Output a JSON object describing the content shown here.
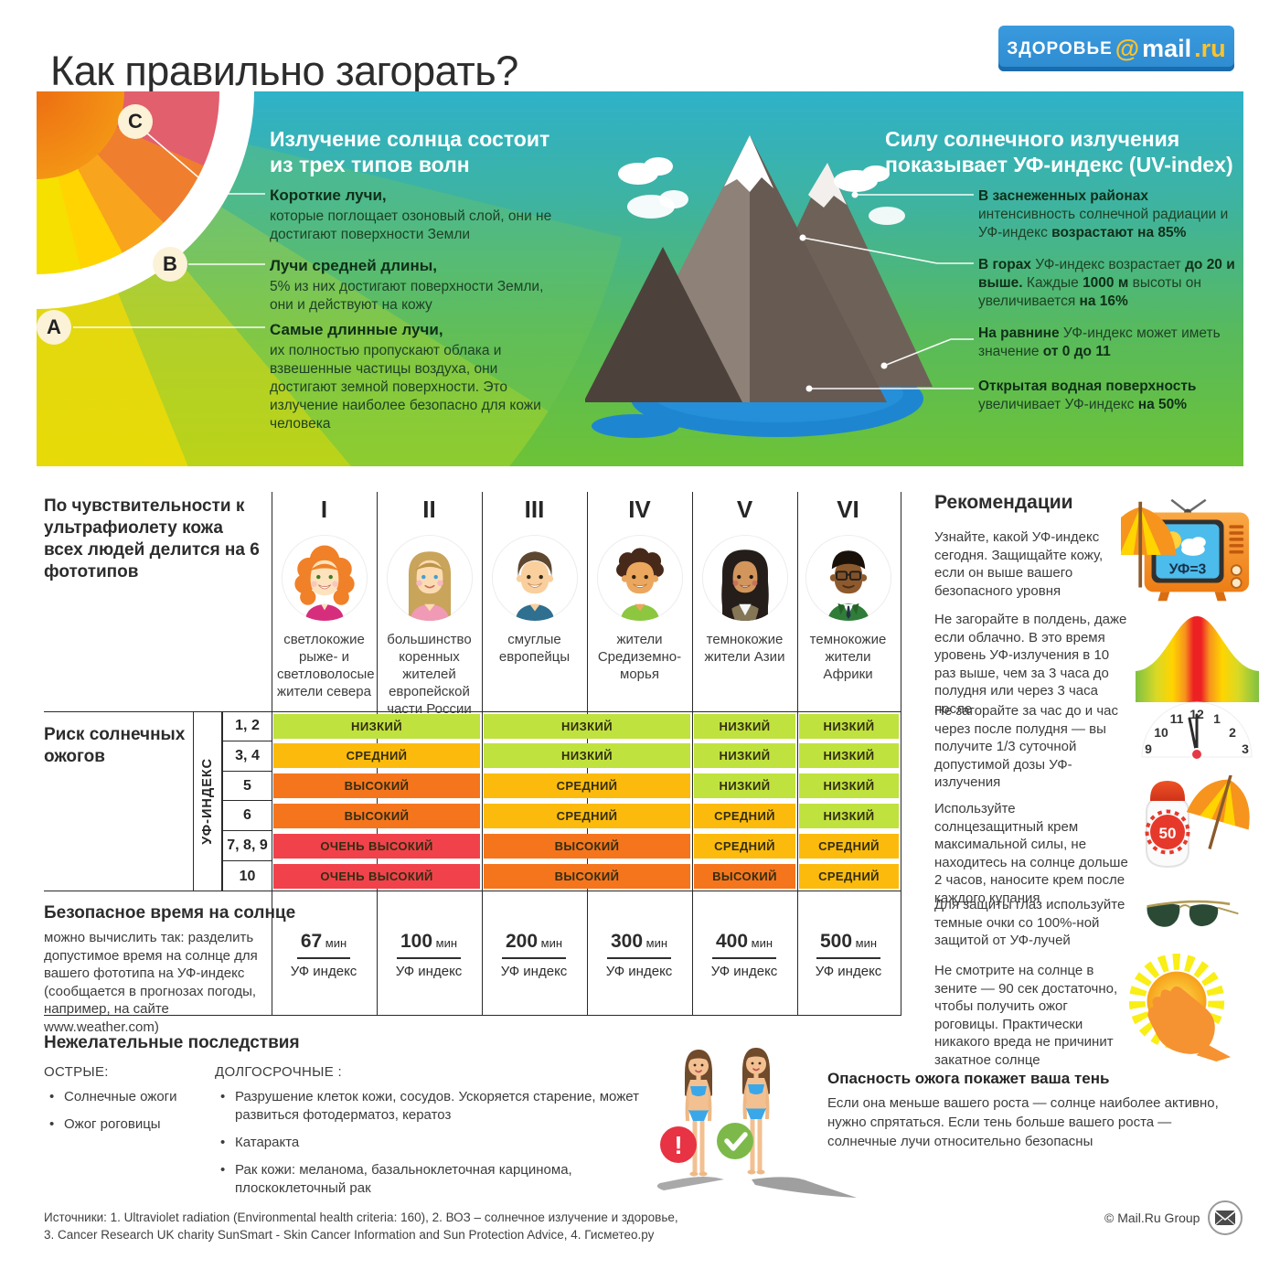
{
  "header": {
    "title": "Как правильно загорать?",
    "logo": {
      "site": "ЗДОРОВЬЕ",
      "at": "@",
      "domain": "mail",
      "tld": ".ru"
    }
  },
  "banner": {
    "left": {
      "heading": "Излучение солнца состоит из трех типов волн",
      "rays": [
        {
          "label": "C",
          "title": "Короткие лучи,",
          "text": "которые поглощает озоновый слой, они не достигают поверхности Земли"
        },
        {
          "label": "B",
          "title": "Лучи средней длины,",
          "text": "5% из них достигают поверхности Земли, они и действуют на кожу"
        },
        {
          "label": "A",
          "title": "Самые длинные лучи,",
          "text": "их полностью пропускают облака и взвешенные частицы воздуха, они достигают земной поверхности. Это излучение наиболее безопасно для кожи человека"
        }
      ]
    },
    "right": {
      "heading": "Силу солнечного излучения показывает УФ-индекс (UV-index)",
      "facts": [
        {
          "segments": [
            {
              "t": "В заснеженных районах",
              "b": true
            },
            {
              "t": " интенсивность солнечной радиации и УФ-индекс ",
              "b": false
            },
            {
              "t": "возрастают на 85%",
              "b": true
            }
          ]
        },
        {
          "segments": [
            {
              "t": "В горах",
              "b": true
            },
            {
              "t": "  УФ-индекс возрастает ",
              "b": false
            },
            {
              "t": "до 20 и выше.",
              "b": true
            },
            {
              "t": " Каждые ",
              "b": false
            },
            {
              "t": "1000 м",
              "b": true
            },
            {
              "t": " высоты он увеличивается ",
              "b": false
            },
            {
              "t": "на 16%",
              "b": true
            }
          ]
        },
        {
          "segments": [
            {
              "t": "На равнине",
              "b": true
            },
            {
              "t": " УФ-индекс может иметь значение ",
              "b": false
            },
            {
              "t": "от 0 до 11",
              "b": true
            }
          ]
        },
        {
          "segments": [
            {
              "t": "Открытая водная поверхность",
              "b": true
            },
            {
              "t": " увеличивает УФ-индекс ",
              "b": false
            },
            {
              "t": "на 50%",
              "b": true
            }
          ]
        }
      ]
    }
  },
  "phototypes": {
    "intro": "По чувствительности к ультрафиолету кожа всех людей делится на 6 фототипов",
    "columns": [
      {
        "numeral": "I",
        "caption": "светлокожие рыже- и светловолосые жители севера",
        "avatar": "redhead-woman"
      },
      {
        "numeral": "II",
        "caption": "большинство коренных жителей европейской части России",
        "avatar": "blonde-woman"
      },
      {
        "numeral": "III",
        "caption": "смуглые европейцы",
        "avatar": "brown-haired-man"
      },
      {
        "numeral": "IV",
        "caption": "жители Средиземно-морья",
        "avatar": "curly-haired-man"
      },
      {
        "numeral": "V",
        "caption": "темнокожие жители Азии",
        "avatar": "asian-woman"
      },
      {
        "numeral": "VI",
        "caption": "темнокожие жители Африки",
        "avatar": "african-man"
      }
    ]
  },
  "risk_table": {
    "title": "Риск солнечных ожогов",
    "axis_label": "УФ-ИНДЕКС",
    "rows": [
      {
        "uv": "1, 2",
        "cells": [
          {
            "label": "НИЗКИЙ",
            "color": "#bfe23e"
          },
          {
            "label": "НИЗКИЙ",
            "color": "#bfe23e"
          },
          {
            "label": "НИЗКИЙ",
            "color": "#bfe23e"
          },
          {
            "label": "НИЗКИЙ",
            "color": "#bfe23e"
          }
        ]
      },
      {
        "uv": "3, 4",
        "cells": [
          {
            "label": "СРЕДНИЙ",
            "color": "#fcbb0c"
          },
          {
            "label": "НИЗКИЙ",
            "color": "#bfe23e"
          },
          {
            "label": "НИЗКИЙ",
            "color": "#bfe23e"
          },
          {
            "label": "НИЗКИЙ",
            "color": "#bfe23e"
          }
        ]
      },
      {
        "uv": "5",
        "cells": [
          {
            "label": "ВЫСОКИЙ",
            "color": "#f5751d"
          },
          {
            "label": "СРЕДНИЙ",
            "color": "#fcbb0c"
          },
          {
            "label": "НИЗКИЙ",
            "color": "#bfe23e"
          },
          {
            "label": "НИЗКИЙ",
            "color": "#bfe23e"
          }
        ]
      },
      {
        "uv": "6",
        "cells": [
          {
            "label": "ВЫСОКИЙ",
            "color": "#f5751d"
          },
          {
            "label": "СРЕДНИЙ",
            "color": "#fcbb0c"
          },
          {
            "label": "СРЕДНИЙ",
            "color": "#fcbb0c"
          },
          {
            "label": "НИЗКИЙ",
            "color": "#bfe23e"
          }
        ]
      },
      {
        "uv": "7, 8, 9",
        "cells": [
          {
            "label": "ОЧЕНЬ ВЫСОКИЙ",
            "color": "#f1424c"
          },
          {
            "label": "ВЫСОКИЙ",
            "color": "#f5751d"
          },
          {
            "label": "СРЕДНИЙ",
            "color": "#fcbb0c"
          },
          {
            "label": "СРЕДНИЙ",
            "color": "#fcbb0c"
          }
        ]
      },
      {
        "uv": "10",
        "cells": [
          {
            "label": "ОЧЕНЬ ВЫСОКИЙ",
            "color": "#f1424c"
          },
          {
            "label": "ВЫСОКИЙ",
            "color": "#f5751d"
          },
          {
            "label": "ВЫСОКИЙ",
            "color": "#f5751d"
          },
          {
            "label": "СРЕДНИЙ",
            "color": "#fcbb0c"
          }
        ]
      }
    ]
  },
  "safe_time": {
    "title": "Безопасное время на солнце",
    "text": "можно вычислить так: разделить допустимое время на солнце для вашего фототипа на УФ-индекс ",
    "note": "(сообщается в прогнозах погоды, например, на сайте www.weather.com)",
    "unit": " мин",
    "denominator": "УФ индекс",
    "values": [
      "67",
      "100",
      "200",
      "300",
      "400",
      "500"
    ]
  },
  "consequences": {
    "title": "Нежелательные последствия",
    "acute": {
      "label": "ОСТРЫЕ:",
      "items": [
        "Солнечные ожоги",
        "Ожог роговицы"
      ]
    },
    "long_term": {
      "label": "ДОЛГОСРОЧНЫЕ :",
      "items": [
        "Разрушение клеток кожи, сосудов. Ускоряется старение, может развиться фотодерматоз, кератоз",
        "Катаракта",
        "Рак кожи: меланома, базальноклеточная карцинома, плоскоклеточный рак"
      ]
    }
  },
  "shadow": {
    "title": "Опасность ожога покажет ваша тень",
    "text": "Если она меньше вашего роста — солнце наиболее активно, нужно спрятаться. Если тень больше вашего роста — солнечные лучи относительно безопасны",
    "warning_mark": "!"
  },
  "recommendations": {
    "title": "Рекомендации",
    "items": [
      {
        "text": "Узнайте, какой УФ-индекс сегодня. Защищайте кожу, если он выше вашего безопасного уровня"
      },
      {
        "text": "Не загорайте в полдень, даже если облачно. В это время уровень УФ-излучения в 10 раз выше, чем за 3 часа до полудня или через 3 часа после"
      },
      {
        "text": "Не загорайте за час до и час через после полудня — вы получите 1/3 суточной допустимой дозы УФ-излучения"
      },
      {
        "text": "Используйте солнцезащитный крем максимальной силы, не находитесь на солнце дольше 2 часов, наносите крем после каждого купания"
      },
      {
        "text": "Для защиты глаз используйте темные очки со 100%-ной защитой от УФ-лучей"
      },
      {
        "text": "Не смотрите на солнце в зените — 90 сек достаточно, чтобы получить ожог роговицы. Практически никакого вреда не причинит закатное солнце"
      }
    ],
    "tv_label": "УФ=3",
    "spf_label": "50",
    "clock": {
      "numbers": [
        "12",
        "11",
        "1",
        "10",
        "2",
        "9",
        "3"
      ]
    }
  },
  "footer": {
    "sources": "Источники: 1. Ultraviolet radiation (Environmental health criteria: 160), 2. ВОЗ – солнечное излучение и здоровье, 3. Cancer Research UK charity SunSmart - Skin Cancer Information and Sun Protection Advice, 4. Гисметео.ру",
    "copyright": "© Mail.Ru Group"
  }
}
